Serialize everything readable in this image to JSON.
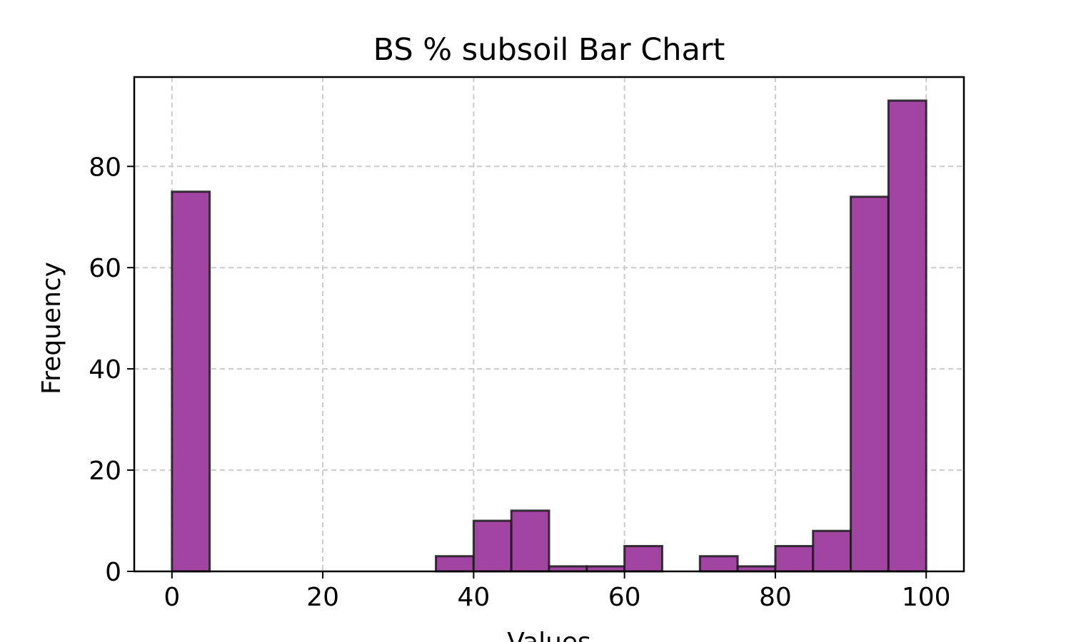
{
  "chart_data": {
    "type": "bar",
    "title": "BS % subsoil Bar Chart",
    "xlabel": "Values",
    "ylabel": "Frequency",
    "bin_width": 5,
    "bins": [
      {
        "start": 0,
        "count": 75
      },
      {
        "start": 5,
        "count": 0
      },
      {
        "start": 10,
        "count": 0
      },
      {
        "start": 15,
        "count": 0
      },
      {
        "start": 20,
        "count": 0
      },
      {
        "start": 25,
        "count": 0
      },
      {
        "start": 30,
        "count": 0
      },
      {
        "start": 35,
        "count": 3
      },
      {
        "start": 40,
        "count": 10
      },
      {
        "start": 45,
        "count": 12
      },
      {
        "start": 50,
        "count": 1
      },
      {
        "start": 55,
        "count": 1
      },
      {
        "start": 60,
        "count": 5
      },
      {
        "start": 65,
        "count": 0
      },
      {
        "start": 70,
        "count": 3
      },
      {
        "start": 75,
        "count": 1
      },
      {
        "start": 80,
        "count": 5
      },
      {
        "start": 85,
        "count": 8
      },
      {
        "start": 90,
        "count": 74
      },
      {
        "start": 95,
        "count": 93
      }
    ],
    "xlim": [
      -5,
      105
    ],
    "ylim": [
      0,
      97.65
    ],
    "xticks": [
      "0",
      "20",
      "40",
      "60",
      "80",
      "100"
    ],
    "yticks": [
      "0",
      "20",
      "40",
      "60",
      "80"
    ],
    "grid": true,
    "colors": {
      "bar_fill": "#a040a0",
      "bar_edge": "#1a1a1a",
      "grid": "#cccccc",
      "axis": "#000000"
    }
  }
}
